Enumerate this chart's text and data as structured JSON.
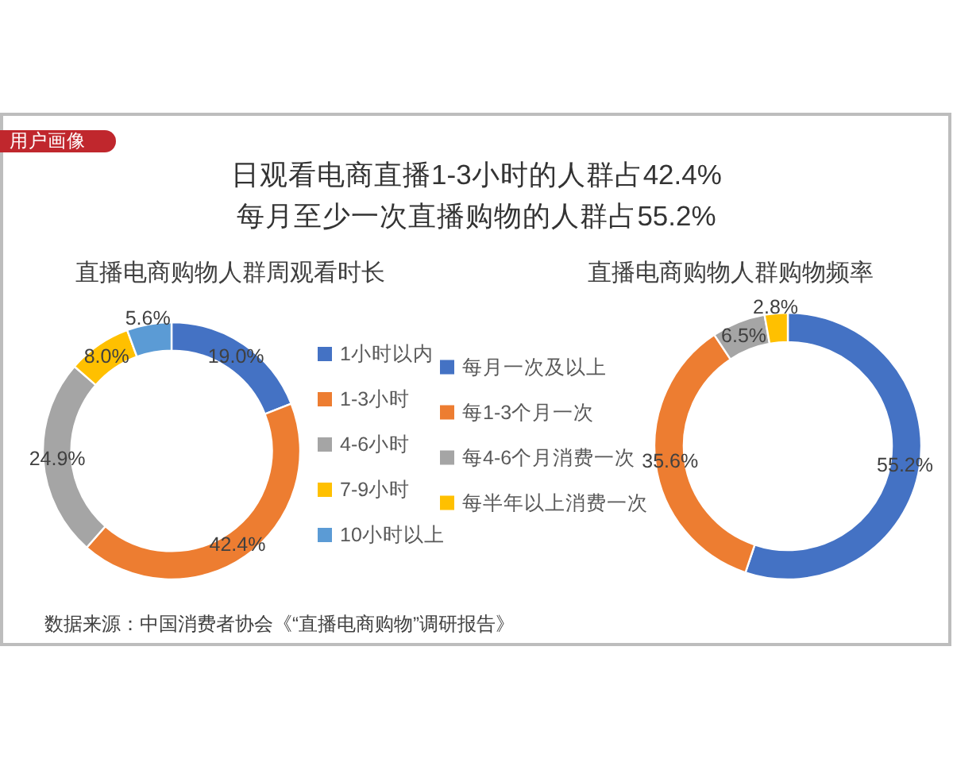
{
  "chart_data": [
    {
      "type": "donut",
      "title": "直播电商购物人群周观看时长",
      "categories": [
        "1小时以内",
        "1-3小时",
        "4-6小时",
        "7-9小时",
        "10小时以上"
      ],
      "values": [
        19.0,
        42.4,
        24.9,
        8.0,
        5.6
      ],
      "value_labels": [
        "19.0%",
        "42.4%",
        "24.9%",
        "8.0%",
        "5.6%"
      ],
      "colors": [
        "#4472c4",
        "#ed7d31",
        "#a5a5a5",
        "#ffc000",
        "#5b9bd5"
      ],
      "legend": "right",
      "annotations": [
        "用户画像",
        "日观看电商直播1-3小时的人群占42.4%",
        "每月至少一次直播购物的人群占55.2%",
        "数据来源：中国消费者协会《“直播电商购物”调研报告》"
      ]
    },
    {
      "type": "donut",
      "title": "直播电商购物人群购物频率",
      "categories": [
        "每月一次及以上",
        "每1-3个月一次",
        "每4-6个月消费一次",
        "每半年以上消费一次"
      ],
      "values": [
        55.2,
        35.6,
        6.5,
        2.8
      ],
      "value_labels": [
        "55.2%",
        "35.6%",
        "6.5%",
        "2.8%"
      ],
      "colors": [
        "#4472c4",
        "#ed7d31",
        "#a5a5a5",
        "#ffc000"
      ],
      "legend": "left"
    }
  ]
}
